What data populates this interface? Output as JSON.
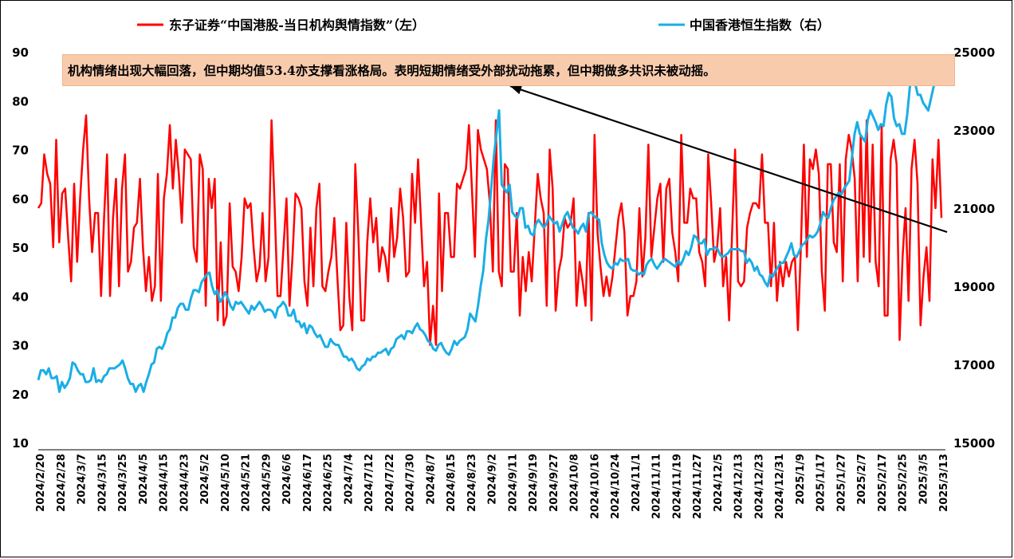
{
  "legend": {
    "left_label": "东子证券“中国港股-当日机构舆情指数”（左）",
    "right_label": "中国香港恒生指数（右）"
  },
  "annotation": "机构情绪出现大幅回落，但中期均值53.4亦支撑看涨格局。表明短期情绪受外部扰动拖累，但中期做多共识未被动摇。",
  "colors": {
    "left_series": "#ff0000",
    "right_series": "#1aaee5",
    "annotation_bg": "#f8cbad",
    "arrow": "#000000"
  },
  "chart_data": {
    "type": "line",
    "left_axis": {
      "ticks": [
        "10",
        "20",
        "30",
        "40",
        "50",
        "60",
        "70",
        "80",
        "90"
      ],
      "range": [
        10,
        90
      ]
    },
    "right_axis": {
      "ticks": [
        "15000",
        "17000",
        "19000",
        "21000",
        "23000",
        "25000"
      ],
      "range": [
        15000,
        25000
      ]
    },
    "x_tick_labels": [
      "2024/2/20",
      "2024/2/28",
      "2024/3/7",
      "2024/3/15",
      "2024/3/25",
      "2024/4/5",
      "2024/4/15",
      "2024/4/23",
      "2024/5/2",
      "2024/5/10",
      "2024/5/21",
      "2024/5/29",
      "2024/6/6",
      "2024/6/17",
      "2024/6/25",
      "2024/7/4",
      "2024/7/12",
      "2024/7/22",
      "2024/7/30",
      "2024/8/7",
      "2024/8/15",
      "2024/8/23",
      "2024/9/2",
      "2024/9/11",
      "2024/9/19",
      "2024/9/27",
      "2024/10/8",
      "2024/10/16",
      "2024/10/24",
      "2024/11/1",
      "2024/11/11",
      "2024/11/19",
      "2024/11/27",
      "2024/12/5",
      "2024/12/13",
      "2024/12/23",
      "2024/12/31",
      "2025/1/9",
      "2025/1/17",
      "2025/1/27",
      "2025/2/7",
      "2025/2/17",
      "2025/2/25",
      "2025/3/5",
      "2025/3/13"
    ],
    "series": [
      {
        "name": "东子证券“中国港股-当日机构舆情指数”（左）",
        "axis": "left",
        "values": [
          58,
          59,
          69,
          65,
          63,
          50,
          72,
          51,
          61,
          62,
          52,
          43,
          63,
          47,
          60,
          70,
          77,
          60,
          49,
          57,
          57,
          40,
          56,
          69,
          40,
          56,
          64,
          42,
          62,
          69,
          45,
          47,
          54,
          55,
          64,
          50,
          41,
          48,
          39,
          42,
          65,
          39,
          60,
          65,
          75,
          62,
          72,
          65,
          55,
          70,
          69,
          68,
          50,
          47,
          69,
          66,
          38,
          64,
          58,
          64,
          35,
          51,
          34,
          36,
          59,
          46,
          45,
          41,
          48,
          60,
          58,
          59,
          50,
          43,
          46,
          57,
          43,
          48,
          76,
          59,
          40,
          40,
          50,
          60,
          38,
          48,
          61,
          60,
          58,
          43,
          38,
          54,
          42,
          58,
          63,
          42,
          41,
          45,
          48,
          56,
          44,
          33,
          34,
          55,
          40,
          33,
          67,
          53,
          35,
          35,
          51,
          60,
          51,
          56,
          45,
          50,
          48,
          43,
          58,
          48,
          52,
          62,
          56,
          44,
          45,
          65,
          55,
          68,
          55,
          42,
          47,
          30,
          38,
          30,
          61,
          41,
          57,
          57,
          48,
          48,
          63,
          62,
          64,
          66,
          75,
          62,
          48,
          74,
          70,
          68,
          66,
          59,
          45,
          76,
          45,
          42,
          67,
          66,
          45,
          45,
          57,
          36,
          48,
          41,
          49,
          43,
          54,
          65,
          60,
          57,
          38,
          70,
          62,
          37,
          45,
          48,
          56,
          54,
          55,
          60,
          38,
          47,
          43,
          38,
          57,
          35,
          73,
          53,
          46,
          40,
          44,
          40,
          44,
          50,
          56,
          59,
          53,
          36,
          40,
          40,
          43,
          58,
          44,
          52,
          71,
          48,
          54,
          60,
          63,
          47,
          62,
          64,
          53,
          49,
          43,
          73,
          55,
          55,
          62,
          60,
          60,
          49,
          47,
          42,
          69,
          59,
          47,
          50,
          58,
          42,
          48,
          35,
          53,
          70,
          43,
          42,
          43,
          54,
          57,
          59,
          59,
          58,
          69,
          55,
          55,
          42,
          55,
          39,
          47,
          42,
          47,
          44,
          47,
          48,
          33,
          50,
          71,
          48,
          68,
          66,
          70,
          65,
          45,
          37,
          67,
          67,
          51,
          49,
          67,
          43,
          68,
          73,
          70,
          64,
          43,
          73,
          48,
          76,
          47,
          71,
          47,
          42,
          75,
          36,
          36,
          68,
          72,
          67,
          31,
          48,
          58,
          39,
          66,
          72,
          63,
          34,
          44,
          50,
          39,
          68,
          58,
          72,
          56
        ]
      },
      {
        "name": "中国香港恒生指数（右）",
        "axis": "right",
        "values": [
          16600,
          16850,
          16850,
          16750,
          16900,
          16650,
          16650,
          16700,
          16300,
          16550,
          16400,
          16500,
          16650,
          17050,
          17000,
          16850,
          16750,
          16750,
          16550,
          16550,
          16600,
          16900,
          16550,
          16600,
          16550,
          16700,
          16750,
          16900,
          16900,
          16900,
          16950,
          17000,
          17100,
          16900,
          16650,
          16500,
          16500,
          16300,
          16450,
          16500,
          16300,
          16550,
          16750,
          17000,
          17050,
          17400,
          17450,
          17400,
          17550,
          17800,
          17900,
          18200,
          18200,
          18450,
          18550,
          18550,
          18400,
          18400,
          18700,
          18900,
          18900,
          18850,
          19100,
          19200,
          19300,
          19350,
          19000,
          18800,
          18900,
          18600,
          18700,
          18850,
          18700,
          18500,
          18400,
          18600,
          18550,
          18600,
          18500,
          18400,
          18300,
          18500,
          18400,
          18500,
          18600,
          18500,
          18350,
          18400,
          18400,
          18350,
          18200,
          18450,
          18500,
          18600,
          18500,
          18250,
          18250,
          18400,
          18100,
          18100,
          17950,
          18050,
          17800,
          18000,
          17950,
          17800,
          17700,
          17750,
          17600,
          17450,
          17450,
          17650,
          17550,
          17500,
          17500,
          17350,
          17200,
          17200,
          17100,
          17150,
          17050,
          16900,
          16850,
          16950,
          17000,
          17150,
          17100,
          17200,
          17200,
          17300,
          17300,
          17350,
          17400,
          17250,
          17400,
          17450,
          17650,
          17700,
          17750,
          17650,
          17850,
          17850,
          17800,
          17950,
          18050,
          17900,
          17850,
          17750,
          17600,
          17550,
          17400,
          17350,
          17500,
          17550,
          17400,
          17300,
          17250,
          17400,
          17600,
          17500,
          17600,
          17650,
          17700,
          17900,
          18300,
          18200,
          18100,
          18500,
          19000,
          19400,
          20200,
          20700,
          21500,
          22300,
          22900,
          23500,
          21600,
          21500,
          21400,
          21600,
          20900,
          20800,
          20750,
          21000,
          21000,
          20500,
          20550,
          20350,
          20300,
          20600,
          20700,
          20600,
          20500,
          20600,
          20800,
          20700,
          20600,
          20650,
          20400,
          20600,
          20800,
          20900,
          20700,
          20500,
          20450,
          20350,
          20500,
          20600,
          20400,
          20850,
          20900,
          20800,
          20750,
          20700,
          20100,
          19800,
          19600,
          19500,
          19450,
          19600,
          19550,
          19700,
          19650,
          19650,
          19700,
          19450,
          19400,
          19400,
          19300,
          19350,
          19300,
          19550,
          19650,
          19700,
          19550,
          19450,
          19550,
          19650,
          19700,
          19650,
          19600,
          19550,
          19500,
          19650,
          19550,
          19700,
          19900,
          19800,
          20000,
          20300,
          20250,
          20100,
          20100,
          20200,
          19800,
          19950,
          19950,
          20000,
          19950,
          19800,
          19750,
          19800,
          19850,
          19950,
          19950,
          19950,
          19950,
          19900,
          19900,
          19600,
          19700,
          19600,
          19400,
          19500,
          19300,
          19250,
          19100,
          19000,
          19300,
          19250,
          19400,
          19500,
          19600,
          19600,
          19750,
          19900,
          20100,
          19800,
          19750,
          19900,
          20050,
          20100,
          20200,
          20300,
          20250,
          20300,
          20400,
          20600,
          20900,
          20800,
          20750,
          21000,
          21200,
          21300,
          21400,
          21350,
          21500,
          21600,
          21700,
          22300,
          22900,
          23200,
          22900,
          22800,
          22700,
          23250,
          23500,
          23350,
          23200,
          23000,
          23150,
          23100,
          23650,
          23950,
          23850,
          23300,
          23100,
          23150,
          22900,
          22900,
          23400,
          24100,
          24400,
          24200,
          23900,
          23900,
          23700,
          23600,
          23500,
          23800,
          24100,
          24400,
          24800,
          24800
        ]
      }
    ],
    "annotation_arrow": {
      "from": {
        "x": "2025/3/13",
        "y_left": 49
      },
      "to_label": "annotation"
    }
  }
}
